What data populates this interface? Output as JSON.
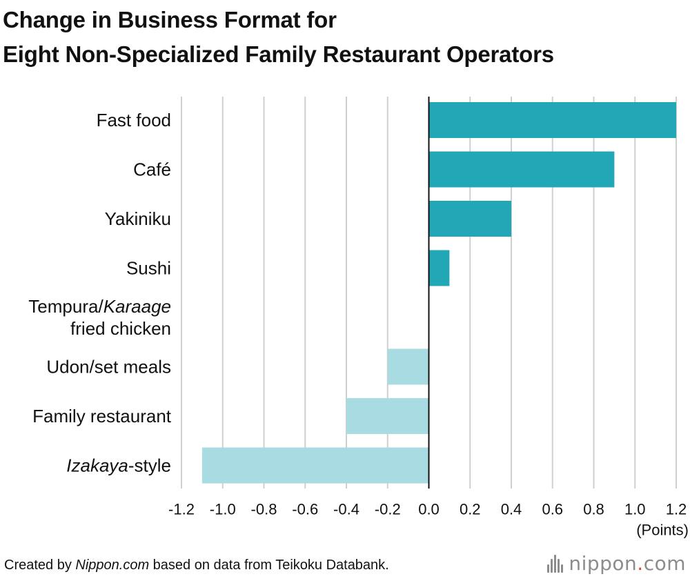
{
  "title": {
    "line1": "Change in Business Format for",
    "line2": "Eight Non-Specialized Family Restaurant Operators"
  },
  "source": {
    "prefix": "Created by ",
    "italic": "Nippon.com",
    "suffix": " based on data from Teikoku Databank."
  },
  "logo": {
    "name": "nippon",
    "dot": ".",
    "tld": "com"
  },
  "colors": {
    "positive": "#22a7b6",
    "negative": "#a9dbe2",
    "grid": "#cfcfcf",
    "axis": "#111111",
    "text": "#111111"
  },
  "chart_data": {
    "type": "bar",
    "orientation": "horizontal",
    "categories": [
      {
        "name": "fast-food",
        "parts": [
          {
            "text": "Fast food",
            "italic": false
          }
        ]
      },
      {
        "name": "cafe",
        "parts": [
          {
            "text": "Café",
            "italic": false
          }
        ]
      },
      {
        "name": "yakiniku",
        "parts": [
          {
            "text": "Yakiniku",
            "italic": false
          }
        ]
      },
      {
        "name": "sushi",
        "parts": [
          {
            "text": "Sushi",
            "italic": false
          }
        ]
      },
      {
        "name": "tempura",
        "parts": [
          {
            "text": "Tempura/",
            "italic": false
          },
          {
            "text": "Karaage",
            "italic": true
          },
          {
            "text": "\nfried chicken",
            "italic": false
          }
        ]
      },
      {
        "name": "udon",
        "parts": [
          {
            "text": "Udon/set meals",
            "italic": false
          }
        ]
      },
      {
        "name": "family-restaurant",
        "parts": [
          {
            "text": "Family restaurant",
            "italic": false
          }
        ]
      },
      {
        "name": "izakaya",
        "parts": [
          {
            "text": "Izakaya",
            "italic": true
          },
          {
            "text": "-style",
            "italic": false
          }
        ]
      }
    ],
    "values": [
      1.2,
      0.9,
      0.4,
      0.1,
      0.0,
      -0.2,
      -0.4,
      -1.1
    ],
    "xlim": [
      -1.2,
      1.2
    ],
    "ticks": [
      "-1.2",
      "-1.0",
      "-0.8",
      "-0.6",
      "-0.4",
      "-0.2",
      "0.0",
      "0.2",
      "0.4",
      "0.6",
      "0.8",
      "1.0",
      "1.2"
    ],
    "xlabel": "(Points)",
    "grid": true
  }
}
